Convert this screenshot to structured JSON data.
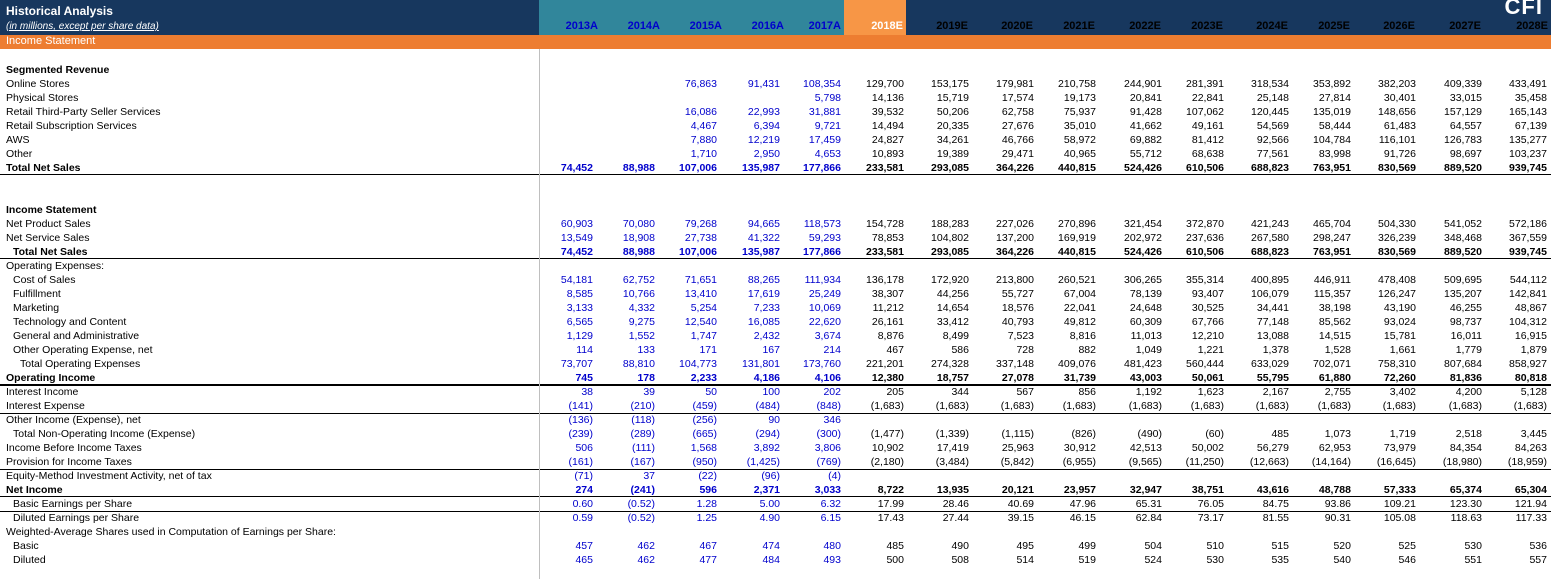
{
  "header": {
    "title": "Historical Analysis",
    "subtitle": "(in millions, except per share data)",
    "logo": "CFI",
    "years": [
      {
        "label": "2013A",
        "kind": "hist"
      },
      {
        "label": "2014A",
        "kind": "hist"
      },
      {
        "label": "2015A",
        "kind": "hist"
      },
      {
        "label": "2016A",
        "kind": "hist"
      },
      {
        "label": "2017A",
        "kind": "hist"
      },
      {
        "label": "2018E",
        "kind": "cur"
      },
      {
        "label": "2019E",
        "kind": "proj"
      },
      {
        "label": "2020E",
        "kind": "proj"
      },
      {
        "label": "2021E",
        "kind": "proj"
      },
      {
        "label": "2022E",
        "kind": "proj"
      },
      {
        "label": "2023E",
        "kind": "proj"
      },
      {
        "label": "2024E",
        "kind": "proj"
      },
      {
        "label": "2025E",
        "kind": "proj"
      },
      {
        "label": "2026E",
        "kind": "proj"
      },
      {
        "label": "2027E",
        "kind": "proj"
      },
      {
        "label": "2028E",
        "kind": "proj"
      }
    ]
  },
  "band_label": "Income Statement",
  "rows": [
    {
      "label": "Segmented Revenue",
      "style": "section",
      "values": []
    },
    {
      "label": "Online Stores",
      "values": [
        "",
        "",
        "76,863",
        "91,431",
        "108,354",
        "129,700",
        "153,175",
        "179,981",
        "210,758",
        "244,901",
        "281,391",
        "318,534",
        "353,892",
        "382,203",
        "409,339",
        "433,491"
      ]
    },
    {
      "label": "Physical Stores",
      "values": [
        "",
        "",
        "",
        "",
        "5,798",
        "14,136",
        "15,719",
        "17,574",
        "19,173",
        "20,841",
        "22,841",
        "25,148",
        "27,814",
        "30,401",
        "33,015",
        "35,458"
      ]
    },
    {
      "label": "Retail Third-Party Seller Services",
      "values": [
        "",
        "",
        "16,086",
        "22,993",
        "31,881",
        "39,532",
        "50,206",
        "62,758",
        "75,937",
        "91,428",
        "107,062",
        "120,445",
        "135,019",
        "148,656",
        "157,129",
        "165,143"
      ]
    },
    {
      "label": "Retail Subscription Services",
      "values": [
        "",
        "",
        "4,467",
        "6,394",
        "9,721",
        "14,494",
        "20,335",
        "27,676",
        "35,010",
        "41,662",
        "49,161",
        "54,569",
        "58,444",
        "61,483",
        "64,557",
        "67,139"
      ]
    },
    {
      "label": "AWS",
      "values": [
        "",
        "",
        "7,880",
        "12,219",
        "17,459",
        "24,827",
        "34,261",
        "46,766",
        "58,972",
        "69,882",
        "81,412",
        "92,566",
        "104,784",
        "116,101",
        "126,783",
        "135,277"
      ]
    },
    {
      "label": "Other",
      "values": [
        "",
        "",
        "1,710",
        "2,950",
        "4,653",
        "10,893",
        "19,389",
        "29,471",
        "40,965",
        "55,712",
        "68,638",
        "77,561",
        "83,998",
        "91,726",
        "98,697",
        "103,237"
      ]
    },
    {
      "label": "Total Net Sales",
      "style": "total",
      "values": [
        "74,452",
        "88,988",
        "107,006",
        "135,987",
        "177,866",
        "233,581",
        "293,085",
        "364,226",
        "440,815",
        "524,426",
        "610,506",
        "688,823",
        "763,951",
        "830,569",
        "889,520",
        "939,745"
      ]
    },
    {
      "label": "",
      "style": "blank",
      "values": []
    },
    {
      "label": "",
      "style": "blank",
      "values": []
    },
    {
      "label": "Income Statement",
      "style": "section",
      "values": []
    },
    {
      "label": "Net Product Sales",
      "values": [
        "60,903",
        "70,080",
        "79,268",
        "94,665",
        "118,573",
        "154,728",
        "188,283",
        "227,026",
        "270,896",
        "321,454",
        "372,870",
        "421,243",
        "465,704",
        "504,330",
        "541,052",
        "572,186"
      ]
    },
    {
      "label": "Net Service Sales",
      "values": [
        "13,549",
        "18,908",
        "27,738",
        "41,322",
        "59,293",
        "78,853",
        "104,802",
        "137,200",
        "169,919",
        "202,972",
        "237,636",
        "267,580",
        "298,247",
        "326,239",
        "348,468",
        "367,559"
      ]
    },
    {
      "label": "Total Net Sales",
      "style": "total ind1",
      "values": [
        "74,452",
        "88,988",
        "107,006",
        "135,987",
        "177,866",
        "233,581",
        "293,085",
        "364,226",
        "440,815",
        "524,426",
        "610,506",
        "688,823",
        "763,951",
        "830,569",
        "889,520",
        "939,745"
      ]
    },
    {
      "label": "Operating Expenses:",
      "values": []
    },
    {
      "label": "Cost of Sales",
      "style": "ind1",
      "values": [
        "54,181",
        "62,752",
        "71,651",
        "88,265",
        "111,934",
        "136,178",
        "172,920",
        "213,800",
        "260,521",
        "306,265",
        "355,314",
        "400,895",
        "446,911",
        "478,408",
        "509,695",
        "544,112"
      ]
    },
    {
      "label": "Fulfillment",
      "style": "ind1",
      "values": [
        "8,585",
        "10,766",
        "13,410",
        "17,619",
        "25,249",
        "38,307",
        "44,256",
        "55,727",
        "67,004",
        "78,139",
        "93,407",
        "106,079",
        "115,357",
        "126,247",
        "135,207",
        "142,841"
      ]
    },
    {
      "label": "Marketing",
      "style": "ind1",
      "values": [
        "3,133",
        "4,332",
        "5,254",
        "7,233",
        "10,069",
        "11,212",
        "14,654",
        "18,576",
        "22,041",
        "24,648",
        "30,525",
        "34,441",
        "38,198",
        "43,190",
        "46,255",
        "48,867"
      ]
    },
    {
      "label": "Technology and Content",
      "style": "ind1",
      "values": [
        "6,565",
        "9,275",
        "12,540",
        "16,085",
        "22,620",
        "26,161",
        "33,412",
        "40,793",
        "49,812",
        "60,309",
        "67,766",
        "77,148",
        "85,562",
        "93,024",
        "98,737",
        "104,312"
      ]
    },
    {
      "label": "General and Administrative",
      "style": "ind1",
      "values": [
        "1,129",
        "1,552",
        "1,747",
        "2,432",
        "3,674",
        "8,876",
        "8,499",
        "7,523",
        "8,816",
        "11,013",
        "12,210",
        "13,088",
        "14,515",
        "15,781",
        "16,011",
        "16,915"
      ]
    },
    {
      "label": "Other Operating Expense, net",
      "style": "ind1",
      "values": [
        "114",
        "133",
        "171",
        "167",
        "214",
        "467",
        "586",
        "728",
        "882",
        "1,049",
        "1,221",
        "1,378",
        "1,528",
        "1,661",
        "1,779",
        "1,879"
      ]
    },
    {
      "label": "Total Operating Expenses",
      "style": "ind2",
      "values": [
        "73,707",
        "88,810",
        "104,773",
        "131,801",
        "173,760",
        "221,201",
        "274,328",
        "337,148",
        "409,076",
        "481,423",
        "560,444",
        "633,029",
        "702,071",
        "758,310",
        "807,684",
        "858,927"
      ]
    },
    {
      "label": "Operating Income",
      "style": "total",
      "values": [
        "745",
        "178",
        "2,233",
        "4,186",
        "4,106",
        "12,380",
        "18,757",
        "27,078",
        "31,739",
        "43,003",
        "50,061",
        "55,795",
        "61,880",
        "72,260",
        "81,836",
        "80,818"
      ]
    },
    {
      "label": "Interest Income",
      "values": [
        "38",
        "39",
        "50",
        "100",
        "202",
        "205",
        "344",
        "567",
        "856",
        "1,192",
        "1,623",
        "2,167",
        "2,755",
        "3,402",
        "4,200",
        "5,128"
      ]
    },
    {
      "label": "Interest Expense",
      "values": [
        "(141)",
        "(210)",
        "(459)",
        "(484)",
        "(848)",
        "(1,683)",
        "(1,683)",
        "(1,683)",
        "(1,683)",
        "(1,683)",
        "(1,683)",
        "(1,683)",
        "(1,683)",
        "(1,683)",
        "(1,683)",
        "(1,683)"
      ]
    },
    {
      "label": "Other Income (Expense), net",
      "values": [
        "(136)",
        "(118)",
        "(256)",
        "90",
        "346",
        "",
        "",
        "",
        "",
        "",
        "",
        "",
        "",
        "",
        "",
        ""
      ]
    },
    {
      "label": "Total Non-Operating Income (Expense)",
      "style": "ind1",
      "values": [
        "(239)",
        "(289)",
        "(665)",
        "(294)",
        "(300)",
        "(1,477)",
        "(1,339)",
        "(1,115)",
        "(826)",
        "(490)",
        "(60)",
        "485",
        "1,073",
        "1,719",
        "2,518",
        "3,445"
      ]
    },
    {
      "label": "Income Before Income Taxes",
      "values": [
        "506",
        "(111)",
        "1,568",
        "3,892",
        "3,806",
        "10,902",
        "17,419",
        "25,963",
        "30,912",
        "42,513",
        "50,002",
        "56,279",
        "62,953",
        "73,979",
        "84,354",
        "84,263"
      ]
    },
    {
      "label": "Provision for Income Taxes",
      "values": [
        "(161)",
        "(167)",
        "(950)",
        "(1,425)",
        "(769)",
        "(2,180)",
        "(3,484)",
        "(5,842)",
        "(6,955)",
        "(9,565)",
        "(11,250)",
        "(12,663)",
        "(14,164)",
        "(16,645)",
        "(18,980)",
        "(18,959)"
      ]
    },
    {
      "label": "Equity-Method Investment Activity, net of tax",
      "values": [
        "(71)",
        "37",
        "(22)",
        "(96)",
        "(4)",
        "",
        "",
        "",
        "",
        "",
        "",
        "",
        "",
        "",
        "",
        ""
      ]
    },
    {
      "label": "Net Income",
      "style": "total",
      "values": [
        "274",
        "(241)",
        "596",
        "2,371",
        "3,033",
        "8,722",
        "13,935",
        "20,121",
        "23,957",
        "32,947",
        "38,751",
        "43,616",
        "48,788",
        "57,333",
        "65,374",
        "65,304"
      ]
    },
    {
      "label": "Basic Earnings per Share",
      "style": "ind1",
      "values": [
        "0.60",
        "(0.52)",
        "1.28",
        "5.00",
        "6.32",
        "17.99",
        "28.46",
        "40.69",
        "47.96",
        "65.31",
        "76.05",
        "84.75",
        "93.86",
        "109.21",
        "123.30",
        "121.94"
      ]
    },
    {
      "label": "Diluted Earnings per Share",
      "style": "ind1",
      "values": [
        "0.59",
        "(0.52)",
        "1.25",
        "4.90",
        "6.15",
        "17.43",
        "27.44",
        "39.15",
        "46.15",
        "62.84",
        "73.17",
        "81.55",
        "90.31",
        "105.08",
        "118.63",
        "117.33"
      ]
    },
    {
      "label": "Weighted-Average Shares used in Computation of Earnings per Share:",
      "values": []
    },
    {
      "label": "Basic",
      "style": "ind1",
      "values": [
        "457",
        "462",
        "467",
        "474",
        "480",
        "485",
        "490",
        "495",
        "499",
        "504",
        "510",
        "515",
        "520",
        "525",
        "530",
        "536"
      ]
    },
    {
      "label": "Diluted",
      "style": "ind1",
      "values": [
        "465",
        "462",
        "477",
        "484",
        "493",
        "500",
        "508",
        "514",
        "519",
        "524",
        "530",
        "535",
        "540",
        "546",
        "551",
        "557"
      ]
    }
  ]
}
